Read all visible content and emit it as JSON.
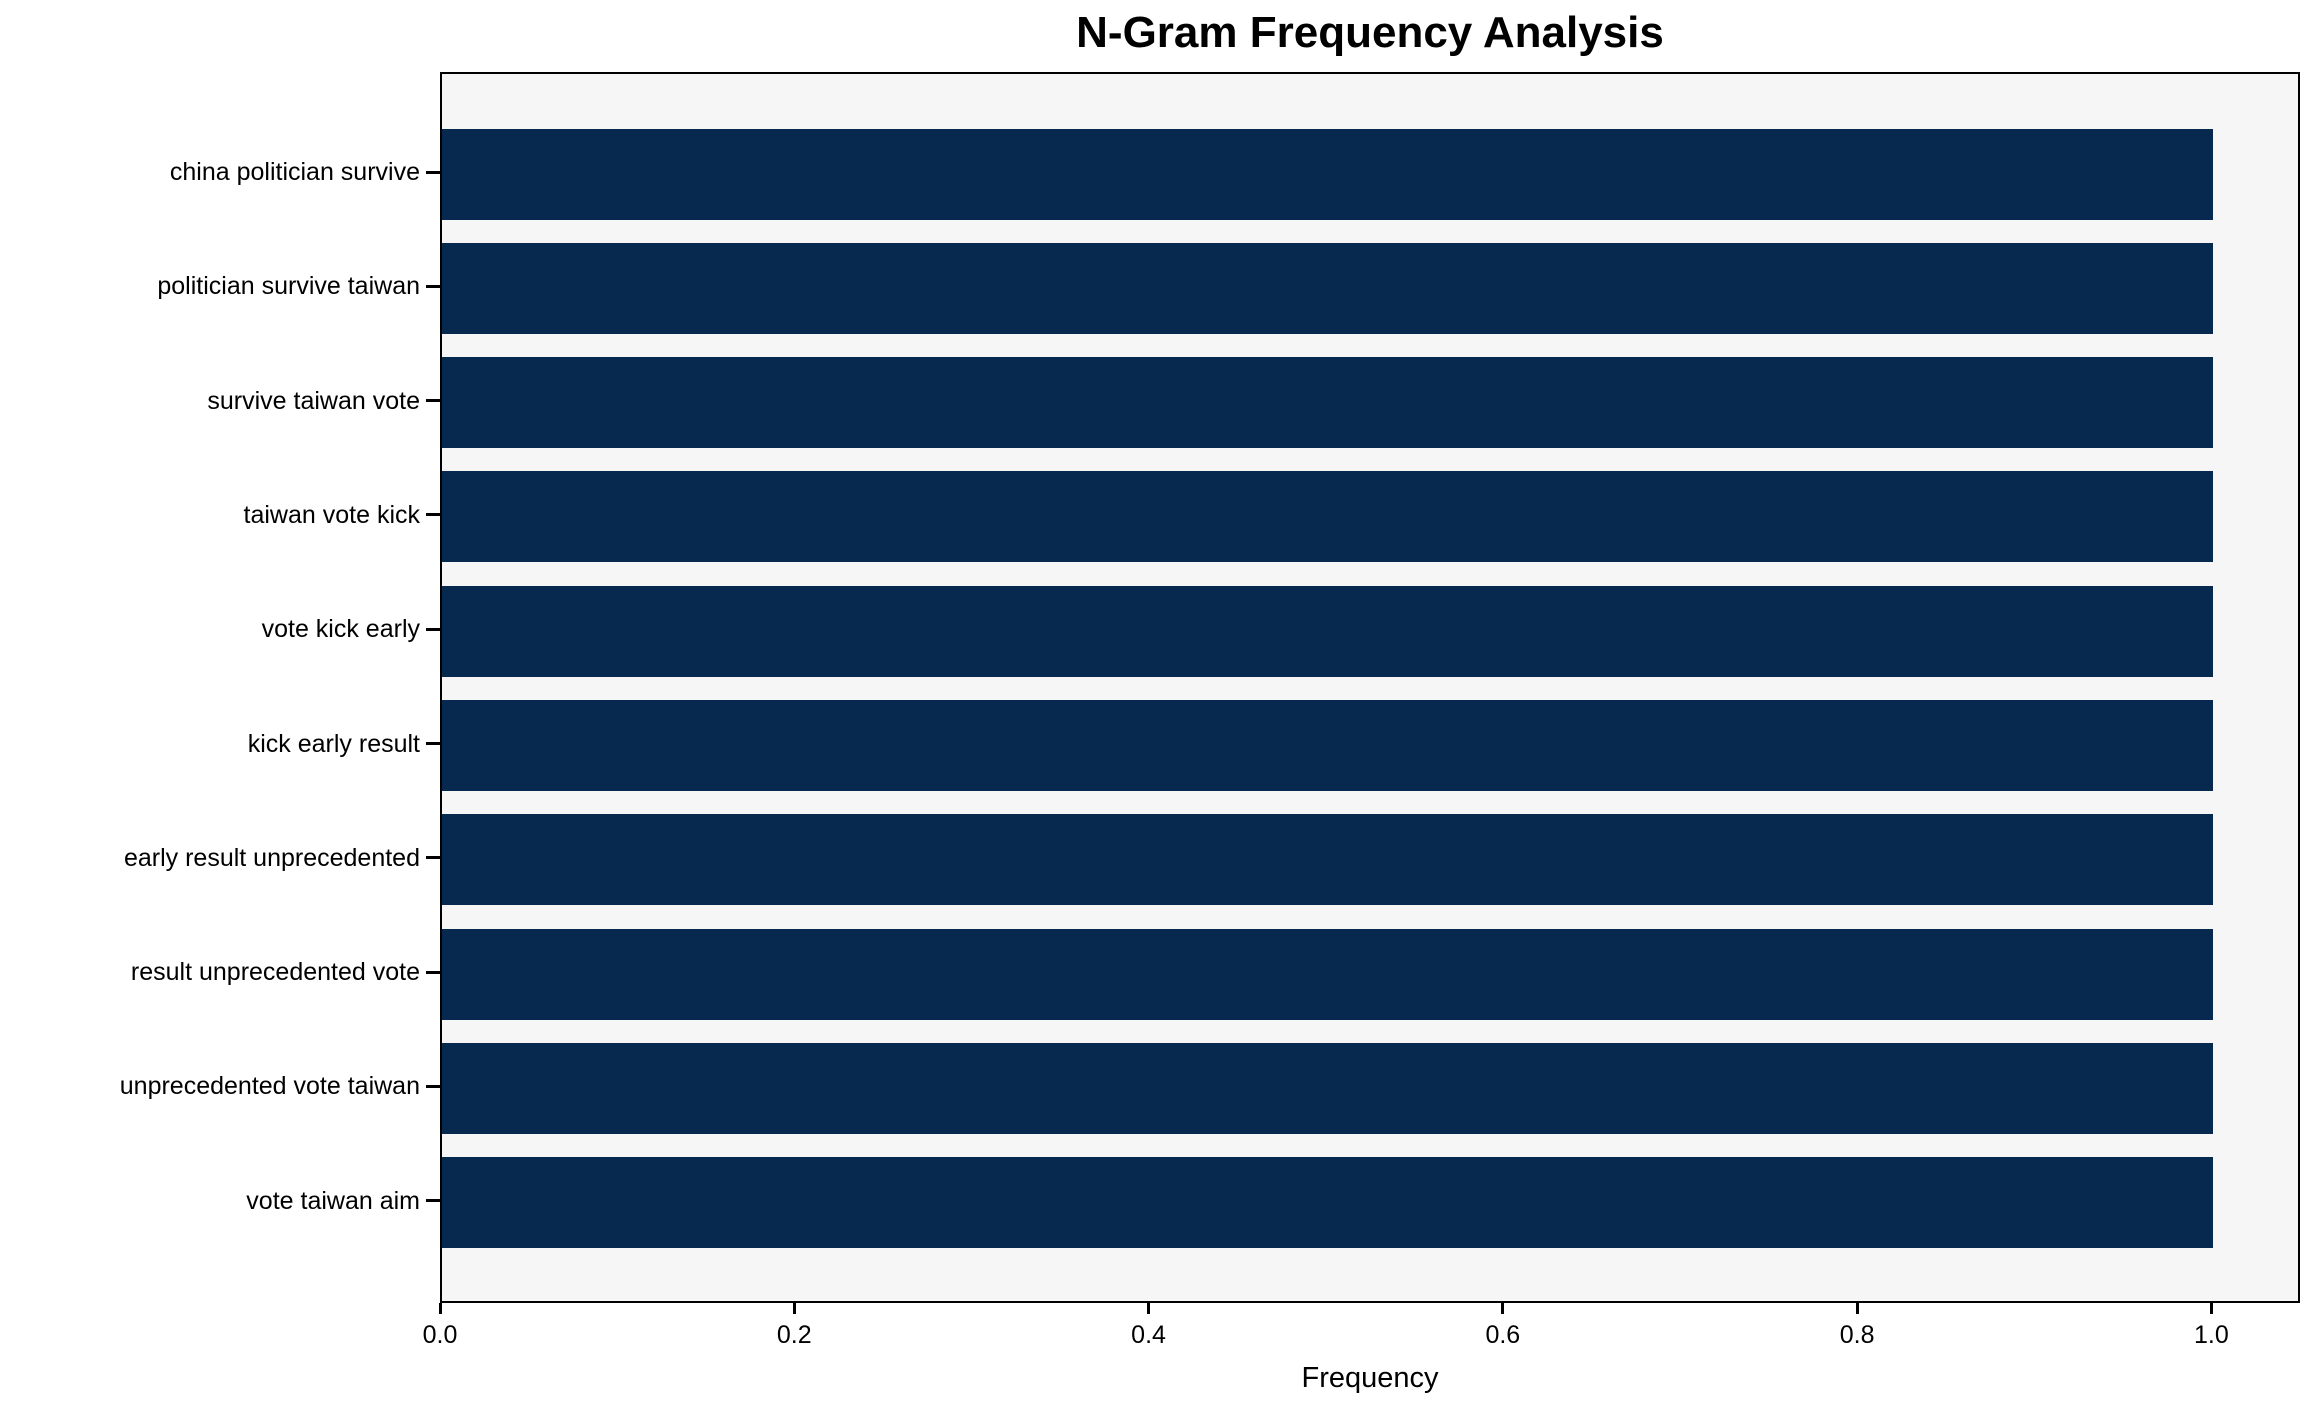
{
  "chart_data": {
    "type": "bar",
    "orientation": "horizontal",
    "title": "N-Gram Frequency Analysis",
    "xlabel": "Frequency",
    "ylabel": "",
    "categories": [
      "china politician survive",
      "politician survive taiwan",
      "survive taiwan vote",
      "taiwan vote kick",
      "vote kick early",
      "kick early result",
      "early result unprecedented",
      "result unprecedented vote",
      "unprecedented vote taiwan",
      "vote taiwan aim"
    ],
    "values": [
      1.0,
      1.0,
      1.0,
      1.0,
      1.0,
      1.0,
      1.0,
      1.0,
      1.0,
      1.0
    ],
    "xlim": [
      0,
      1.05
    ],
    "xticks": [
      {
        "label": "0.0",
        "value": 0.0
      },
      {
        "label": "0.2",
        "value": 0.2
      },
      {
        "label": "0.4",
        "value": 0.4
      },
      {
        "label": "0.6",
        "value": 0.6
      },
      {
        "label": "0.8",
        "value": 0.8
      },
      {
        "label": "1.0",
        "value": 1.0
      }
    ],
    "grid": false,
    "legend": false,
    "colors": {
      "bar": "#072950",
      "plot_background": "#f6f6f6",
      "figure_background": "#ffffff",
      "spine": "#000000",
      "text": "#000000"
    }
  }
}
